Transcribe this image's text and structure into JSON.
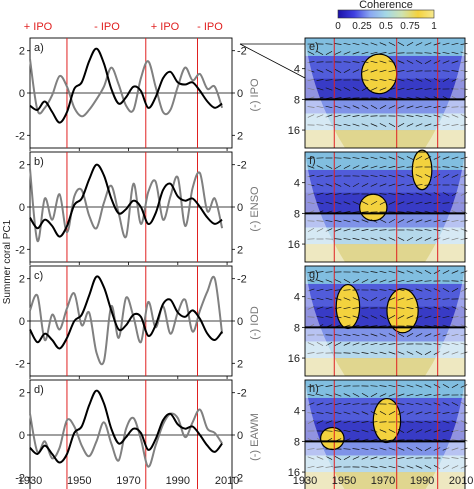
{
  "chart_data": {
    "type": "line",
    "ylabel_shared": "Summer coral PC1",
    "colorbar": {
      "title": "Coherence",
      "ticks": [
        "0",
        "0.25",
        "0.5",
        "0.75",
        "1"
      ],
      "colors": [
        "#1c12a8",
        "#3f3fe0",
        "#8aa7f2",
        "#a4d8e6",
        "#cfe3b0",
        "#f4d23e",
        "#f6e98f"
      ]
    },
    "phase_labels": [
      "+ IPO",
      "- IPO",
      "+ IPO",
      "- IPO"
    ],
    "phase_color": "#e02020",
    "phase_boundaries": [
      1945,
      1977,
      1998
    ],
    "x_ticks": [
      "1930",
      "1950",
      "1970",
      "1990",
      "2010"
    ],
    "xlim": [
      1930,
      2012
    ],
    "left_yticks": [
      "2",
      "0",
      "-2"
    ],
    "right_yticks": [
      "-2",
      "0",
      "2"
    ],
    "period_ticks": [
      "4",
      "8",
      "16"
    ],
    "coral_color": "#000000",
    "index_color": "#808080",
    "panels": [
      {
        "left_label": "a)",
        "right_label": "e)",
        "index_label": "(-) IPO",
        "x": [
          1930,
          1933,
          1936,
          1939,
          1942,
          1945,
          1948,
          1951,
          1954,
          1957,
          1960,
          1963,
          1966,
          1969,
          1972,
          1975,
          1978,
          1981,
          1984,
          1987,
          1990,
          1993,
          1996,
          1999,
          2002,
          2005,
          2008
        ],
        "coral": [
          -0.6,
          -0.8,
          -0.4,
          -0.9,
          -1.4,
          -0.9,
          0.2,
          0.5,
          1.5,
          2.1,
          1.4,
          0.2,
          -0.5,
          -0.2,
          0.3,
          0.1,
          -0.7,
          -0.2,
          0.7,
          1.0,
          0.5,
          0.4,
          0.5,
          0.1,
          -0.4,
          -0.7,
          -0.5
        ],
        "index": [
          1.6,
          -0.8,
          -0.7,
          -0.1,
          0.8,
          0.3,
          -0.7,
          -1.1,
          -0.8,
          -0.3,
          0.3,
          1.2,
          0.4,
          -0.6,
          -0.8,
          0.7,
          1.5,
          0.3,
          -0.9,
          -0.8,
          0.3,
          1.2,
          0.6,
          0.9,
          0.2,
          0.3,
          -0.7
        ],
        "wtc_blobs": [
          {
            "x": 1968,
            "p": 4.5,
            "rx": 9,
            "rp": 0.18
          }
        ]
      },
      {
        "left_label": "b)",
        "right_label": "f)",
        "index_label": "(-) ENSO",
        "x": [
          1930,
          1933,
          1936,
          1939,
          1942,
          1945,
          1948,
          1951,
          1954,
          1957,
          1960,
          1963,
          1966,
          1969,
          1972,
          1975,
          1978,
          1981,
          1984,
          1987,
          1990,
          1993,
          1996,
          1999,
          2002,
          2005,
          2008
        ],
        "coral": [
          -0.5,
          -1.0,
          -0.6,
          -0.9,
          -1.4,
          -0.9,
          0.1,
          0.4,
          1.3,
          2.0,
          1.5,
          0.4,
          -0.3,
          -0.1,
          0.3,
          0.0,
          -0.8,
          -0.3,
          0.8,
          1.1,
          0.5,
          0.3,
          0.4,
          0.0,
          -0.5,
          -0.8,
          -0.6
        ],
        "index": [
          1.8,
          -1.6,
          0.4,
          -0.6,
          0.6,
          -1.2,
          0.5,
          0.8,
          -0.4,
          -1.0,
          0.2,
          1.0,
          -0.3,
          -1.4,
          1.1,
          -0.8,
          0.7,
          1.2,
          -0.6,
          0.5,
          1.4,
          -0.9,
          0.9,
          1.6,
          -0.2,
          0.4,
          -1.0
        ],
        "wtc_blobs": [
          {
            "x": 1965,
            "p": 7.0,
            "rx": 7,
            "rp": 0.12
          },
          {
            "x": 1990,
            "p": 3.0,
            "rx": 5,
            "rp": 0.18
          }
        ]
      },
      {
        "left_label": "c)",
        "right_label": "g)",
        "index_label": "(-) IOD",
        "x": [
          1930,
          1933,
          1936,
          1939,
          1942,
          1945,
          1948,
          1951,
          1954,
          1957,
          1960,
          1963,
          1966,
          1969,
          1972,
          1975,
          1978,
          1981,
          1984,
          1987,
          1990,
          1993,
          1996,
          1999,
          2002,
          2005,
          2008
        ],
        "coral": [
          -0.4,
          -1.0,
          -0.6,
          -0.9,
          -1.3,
          -0.8,
          0.0,
          0.3,
          1.2,
          2.1,
          1.6,
          0.5,
          -0.4,
          -0.2,
          0.3,
          0.2,
          -0.7,
          -0.2,
          0.8,
          1.0,
          0.4,
          0.2,
          0.5,
          0.1,
          -0.6,
          -0.9,
          -0.5
        ],
        "index": [
          0.5,
          1.2,
          -0.9,
          0.3,
          -0.4,
          0.6,
          1.3,
          -0.2,
          0.4,
          -1.5,
          -1.9,
          0.7,
          -0.8,
          1.1,
          0.2,
          -1.0,
          0.9,
          -0.3,
          0.7,
          -0.6,
          0.4,
          1.0,
          -0.5,
          0.5,
          1.4,
          2.0,
          -0.6
        ],
        "wtc_blobs": [
          {
            "x": 1952,
            "p": 5.0,
            "rx": 6,
            "rp": 0.2
          },
          {
            "x": 1980,
            "p": 5.5,
            "rx": 8,
            "rp": 0.2
          }
        ]
      },
      {
        "left_label": "d)",
        "right_label": "h)",
        "index_label": "(-) EAWM",
        "x": [
          1930,
          1933,
          1936,
          1939,
          1942,
          1945,
          1948,
          1951,
          1954,
          1957,
          1960,
          1963,
          1966,
          1969,
          1972,
          1975,
          1978,
          1981,
          1984,
          1987,
          1990,
          1993,
          1996,
          1999,
          2002,
          2005,
          2008
        ],
        "coral": [
          -0.6,
          -0.9,
          -0.5,
          -0.9,
          -1.3,
          -0.9,
          0.1,
          0.4,
          1.4,
          2.1,
          1.5,
          0.3,
          -0.4,
          -0.1,
          0.3,
          0.1,
          -0.7,
          -0.2,
          0.7,
          1.0,
          0.5,
          0.3,
          0.4,
          0.0,
          -0.5,
          -0.8,
          -0.4
        ],
        "index": [
          1.0,
          -0.8,
          -0.3,
          -1.1,
          -0.6,
          0.7,
          0.4,
          -0.5,
          -1.0,
          -0.3,
          0.6,
          -0.4,
          -1.2,
          0.3,
          0.8,
          -0.2,
          -1.5,
          -0.5,
          0.5,
          1.0,
          0.8,
          -0.1,
          0.6,
          1.2,
          0.3,
          0.1,
          -0.4
        ],
        "wtc_blobs": [
          {
            "x": 1944,
            "p": 7.5,
            "rx": 6,
            "rp": 0.1
          },
          {
            "x": 1972,
            "p": 5.0,
            "rx": 7,
            "rp": 0.2
          }
        ]
      }
    ]
  }
}
